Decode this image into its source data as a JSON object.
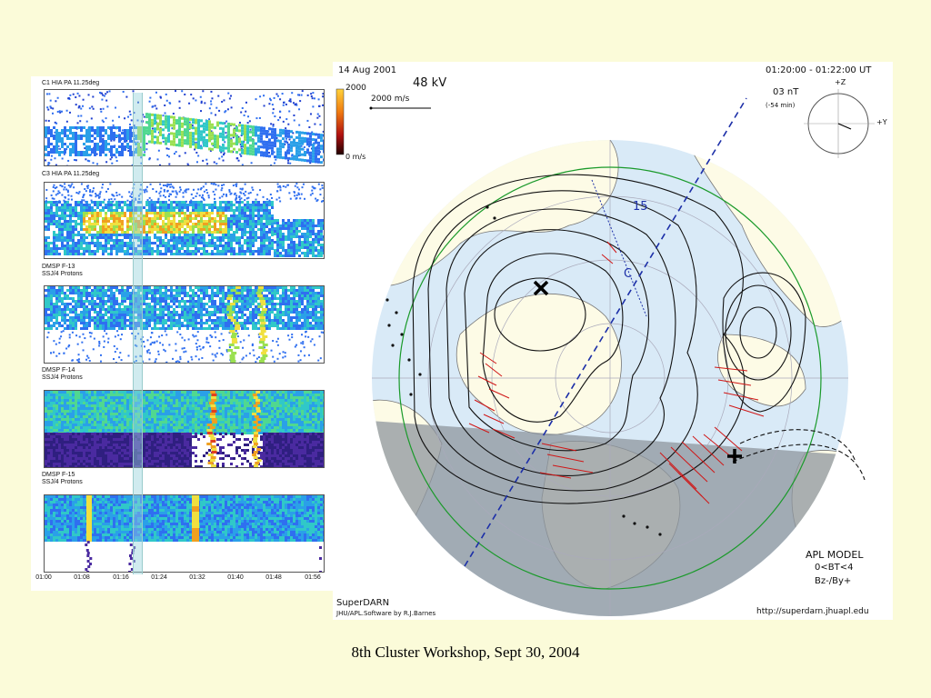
{
  "left_panel": {
    "strips": [
      {
        "title": "C1 HIA PA 11.25deg",
        "style": "cluster1"
      },
      {
        "title": "C3 HIA PA 11.25deg",
        "style": "cluster3"
      },
      {
        "title": "DMSP F-13\nSSJ/4 Protons",
        "style": "dmsp13"
      },
      {
        "title": "DMSP F-14\nSSJ/4 Protons",
        "style": "dmsp14"
      },
      {
        "title": "DMSP F-15\nSSJ/4 Protons",
        "style": "dmsp15"
      }
    ],
    "time_ticks": [
      "01:00",
      "01:08",
      "01:16",
      "01:24",
      "01:32",
      "01:40",
      "01:48",
      "01:56"
    ]
  },
  "map": {
    "date": "14 Aug 2001",
    "potential": "48 kV",
    "velocity_scale": "2000 m/s",
    "colorbar_max": "2000",
    "colorbar_min": "0 m/s",
    "time_range": "01:20:00 - 01:22:00 UT",
    "imf_magnitude": "03 nT",
    "imf_delay": "(-54 min)",
    "clock_plus_z": "+Z",
    "clock_plus_y": "+Y",
    "contour_label_15": "15",
    "contour_label_c": "C",
    "model_line1": "APL MODEL",
    "model_line2": "0<BT<4",
    "model_line3": "Bz-/By+",
    "source": "SuperDARN",
    "software": "JHU/APL.Software by R.J.Barnes",
    "url": "http://superdarn.jhuapl.edu"
  },
  "footer": "8th Cluster Workshop, Sept 30, 2004",
  "colors": {
    "background": "#fbfbd9",
    "ocean": "#d9eaf7",
    "land": "#fdfbe6",
    "night": "#9fa6ad",
    "contour_dashed_boundary": "#1c2fa8"
  }
}
